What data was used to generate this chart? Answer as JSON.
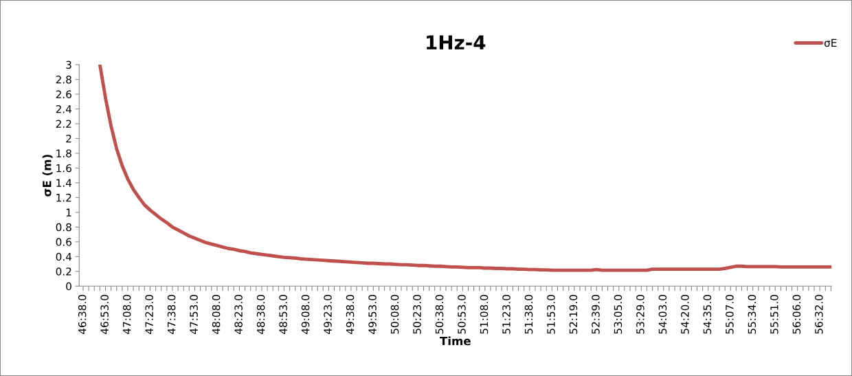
{
  "chart_data": {
    "type": "line",
    "title": "1Hz-4",
    "xlabel": "Time",
    "ylabel": "σE (m)",
    "categories": [
      "46:38.0",
      null,
      null,
      null,
      "46:53.0",
      null,
      null,
      null,
      "47:08.0",
      null,
      null,
      null,
      "47:23.0",
      null,
      null,
      null,
      "47:38.0",
      null,
      null,
      null,
      "47:53.0",
      null,
      null,
      null,
      "48:08.0",
      null,
      null,
      null,
      "48:23.0",
      null,
      null,
      null,
      "48:38.0",
      null,
      null,
      null,
      "48:53.0",
      null,
      null,
      null,
      "49:08.0",
      null,
      null,
      null,
      "49:23.0",
      null,
      null,
      null,
      "49:38.0",
      null,
      null,
      null,
      "49:53.0",
      null,
      null,
      null,
      "50:08.0",
      null,
      null,
      null,
      "50:23.0",
      null,
      null,
      null,
      "50:38.0",
      null,
      null,
      null,
      "50:53.0",
      null,
      null,
      null,
      "51:08.0",
      null,
      null,
      null,
      "51:23.0",
      null,
      null,
      null,
      "51:38.0",
      null,
      null,
      null,
      "51:53.0",
      null,
      null,
      null,
      "52:19.0",
      null,
      null,
      null,
      "52:39.0",
      null,
      null,
      null,
      "53:05.0",
      null,
      null,
      null,
      "53:29.0",
      null,
      null,
      null,
      "54:03.0",
      null,
      null,
      null,
      "54:20.0",
      null,
      null,
      null,
      "54:35.0",
      null,
      null,
      null,
      "55:07.0",
      null,
      null,
      null,
      "55:34.0",
      null,
      null,
      null,
      "55:51.0",
      null,
      null,
      null,
      "56:06.0",
      null,
      null,
      null,
      "56:32.0",
      null,
      null
    ],
    "series": [
      {
        "name": "σE",
        "color": "#c0504d",
        "values": [
          null,
          null,
          null,
          3.0,
          2.55,
          2.17,
          1.86,
          1.63,
          1.45,
          1.31,
          1.2,
          1.1,
          1.03,
          0.97,
          0.91,
          0.86,
          0.8,
          0.76,
          0.72,
          0.68,
          0.65,
          0.62,
          0.59,
          0.57,
          0.55,
          0.53,
          0.51,
          0.5,
          0.48,
          0.47,
          0.45,
          0.44,
          0.43,
          0.42,
          0.41,
          0.4,
          0.39,
          0.385,
          0.38,
          0.37,
          0.365,
          0.36,
          0.355,
          0.35,
          0.345,
          0.34,
          0.335,
          0.33,
          0.325,
          0.32,
          0.315,
          0.31,
          0.31,
          0.305,
          0.3,
          0.3,
          0.295,
          0.29,
          0.29,
          0.285,
          0.28,
          0.28,
          0.275,
          0.27,
          0.27,
          0.265,
          0.26,
          0.26,
          0.255,
          0.25,
          0.25,
          0.25,
          0.245,
          0.245,
          0.24,
          0.24,
          0.235,
          0.235,
          0.23,
          0.23,
          0.225,
          0.225,
          0.22,
          0.22,
          0.215,
          0.215,
          0.215,
          0.215,
          0.215,
          0.215,
          0.215,
          0.215,
          0.225,
          0.215,
          0.215,
          0.215,
          0.215,
          0.215,
          0.215,
          0.215,
          0.215,
          0.215,
          0.23,
          0.23,
          0.23,
          0.23,
          0.23,
          0.23,
          0.23,
          0.23,
          0.23,
          0.23,
          0.23,
          0.23,
          0.23,
          0.24,
          0.255,
          0.27,
          0.27,
          0.265,
          0.265,
          0.265,
          0.265,
          0.265,
          0.265,
          0.26,
          0.26,
          0.26,
          0.26,
          0.26,
          0.26,
          0.26,
          0.26,
          0.26,
          0.26
        ]
      }
    ],
    "ylim": [
      0,
      3
    ],
    "yticks": [
      0,
      0.2,
      0.4,
      0.6,
      0.8,
      1,
      1.2,
      1.4,
      1.6,
      1.8,
      2,
      2.2,
      2.4,
      2.6,
      2.8,
      3
    ],
    "legend": "top right",
    "grid": false,
    "marker": "none",
    "line_style": "solid"
  }
}
